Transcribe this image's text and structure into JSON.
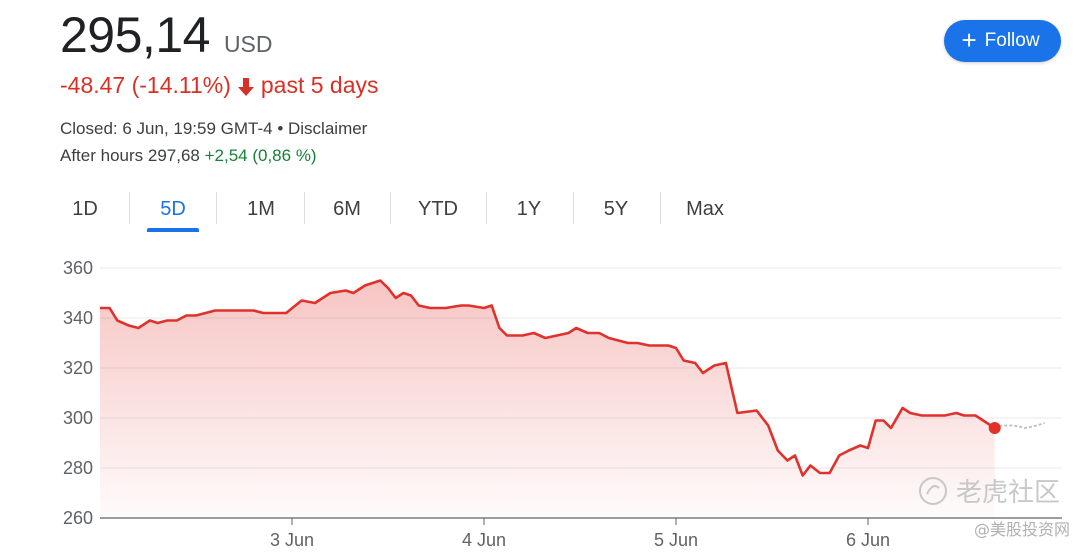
{
  "header": {
    "price": "295,14",
    "currency": "USD",
    "change": "-48.47 (-14.11%)",
    "period": "past 5 days",
    "closed_text": "Closed: 6 Jun, 19:59 GMT-4 • Disclaimer",
    "after_hours_label": "After hours 297,68",
    "after_hours_change": "+2,54 (0,86 %)",
    "follow_label": "Follow"
  },
  "tabs": [
    {
      "label": "1D"
    },
    {
      "label": "5D"
    },
    {
      "label": "1M"
    },
    {
      "label": "6M"
    },
    {
      "label": "YTD"
    },
    {
      "label": "1Y"
    },
    {
      "label": "5Y"
    },
    {
      "label": "Max"
    }
  ],
  "active_tab": "5D",
  "colors": {
    "line": "#e0312b",
    "negative": "#d93025",
    "positive": "#188038",
    "accent": "#1a73e8"
  },
  "watermark": {
    "main": "老虎社区",
    "sub": "@美股投资网"
  },
  "chart_data": {
    "type": "line",
    "title": "",
    "xlabel": "",
    "ylabel": "",
    "ylim": [
      260,
      360
    ],
    "yticks": [
      360,
      340,
      320,
      300,
      280,
      260
    ],
    "xtick_labels": [
      "3 Jun",
      "4 Jun",
      "5 Jun",
      "6 Jun"
    ],
    "xtick_positions": [
      1,
      2,
      3,
      4
    ],
    "xlim": [
      -0.0,
      4.92
    ],
    "grid": true,
    "series": [
      {
        "values": [
          [
            -0.0,
            344
          ],
          [
            0.05,
            344
          ],
          [
            0.09,
            339
          ],
          [
            0.15,
            337
          ],
          [
            0.2,
            336
          ],
          [
            0.26,
            339
          ],
          [
            0.3,
            338
          ],
          [
            0.35,
            339
          ],
          [
            0.4,
            339
          ],
          [
            0.45,
            341
          ],
          [
            0.5,
            341
          ],
          [
            0.55,
            342
          ],
          [
            0.6,
            343
          ],
          [
            0.65,
            343
          ],
          [
            0.7,
            343
          ],
          [
            0.75,
            343
          ],
          [
            0.8,
            343
          ],
          [
            0.85,
            342
          ],
          [
            0.9,
            342
          ],
          [
            0.97,
            342
          ],
          [
            1.05,
            347
          ],
          [
            1.12,
            346
          ],
          [
            1.2,
            350
          ],
          [
            1.28,
            351
          ],
          [
            1.32,
            350
          ],
          [
            1.38,
            353
          ],
          [
            1.46,
            355
          ],
          [
            1.5,
            352
          ],
          [
            1.54,
            348
          ],
          [
            1.58,
            350
          ],
          [
            1.62,
            349
          ],
          [
            1.66,
            345
          ],
          [
            1.72,
            344
          ],
          [
            1.8,
            344
          ],
          [
            1.88,
            345
          ],
          [
            1.92,
            345
          ],
          [
            2.0,
            344
          ],
          [
            2.04,
            345
          ],
          [
            2.08,
            336
          ],
          [
            2.12,
            333
          ],
          [
            2.2,
            333
          ],
          [
            2.26,
            334
          ],
          [
            2.32,
            332
          ],
          [
            2.38,
            333
          ],
          [
            2.44,
            334
          ],
          [
            2.48,
            336
          ],
          [
            2.54,
            334
          ],
          [
            2.6,
            334
          ],
          [
            2.65,
            332
          ],
          [
            2.7,
            331
          ],
          [
            2.75,
            330
          ],
          [
            2.8,
            330
          ],
          [
            2.86,
            329
          ],
          [
            2.92,
            329
          ],
          [
            2.96,
            329
          ],
          [
            3.0,
            328
          ],
          [
            3.04,
            323
          ],
          [
            3.1,
            322
          ],
          [
            3.14,
            318
          ],
          [
            3.2,
            321
          ],
          [
            3.26,
            322
          ],
          [
            3.32,
            302
          ],
          [
            3.42,
            303
          ],
          [
            3.48,
            297
          ],
          [
            3.53,
            287
          ],
          [
            3.58,
            283
          ],
          [
            3.62,
            285
          ],
          [
            3.66,
            277
          ],
          [
            3.7,
            281
          ],
          [
            3.75,
            278
          ],
          [
            3.8,
            278
          ],
          [
            3.85,
            285
          ],
          [
            3.9,
            287
          ],
          [
            3.96,
            289
          ],
          [
            4.0,
            288
          ],
          [
            4.04,
            299
          ],
          [
            4.08,
            299
          ],
          [
            4.12,
            296
          ],
          [
            4.18,
            304
          ],
          [
            4.22,
            302
          ],
          [
            4.28,
            301
          ],
          [
            4.34,
            301
          ],
          [
            4.4,
            301
          ],
          [
            4.46,
            302
          ],
          [
            4.5,
            301
          ],
          [
            4.56,
            301
          ],
          [
            4.62,
            298
          ],
          [
            4.66,
            296
          ]
        ]
      },
      {
        "values": [
          [
            4.66,
            296
          ],
          [
            4.7,
            297
          ],
          [
            4.76,
            297
          ],
          [
            4.82,
            296
          ],
          [
            4.88,
            297
          ],
          [
            4.92,
            298
          ]
        ]
      }
    ],
    "last_point": [
      4.66,
      296
    ]
  }
}
